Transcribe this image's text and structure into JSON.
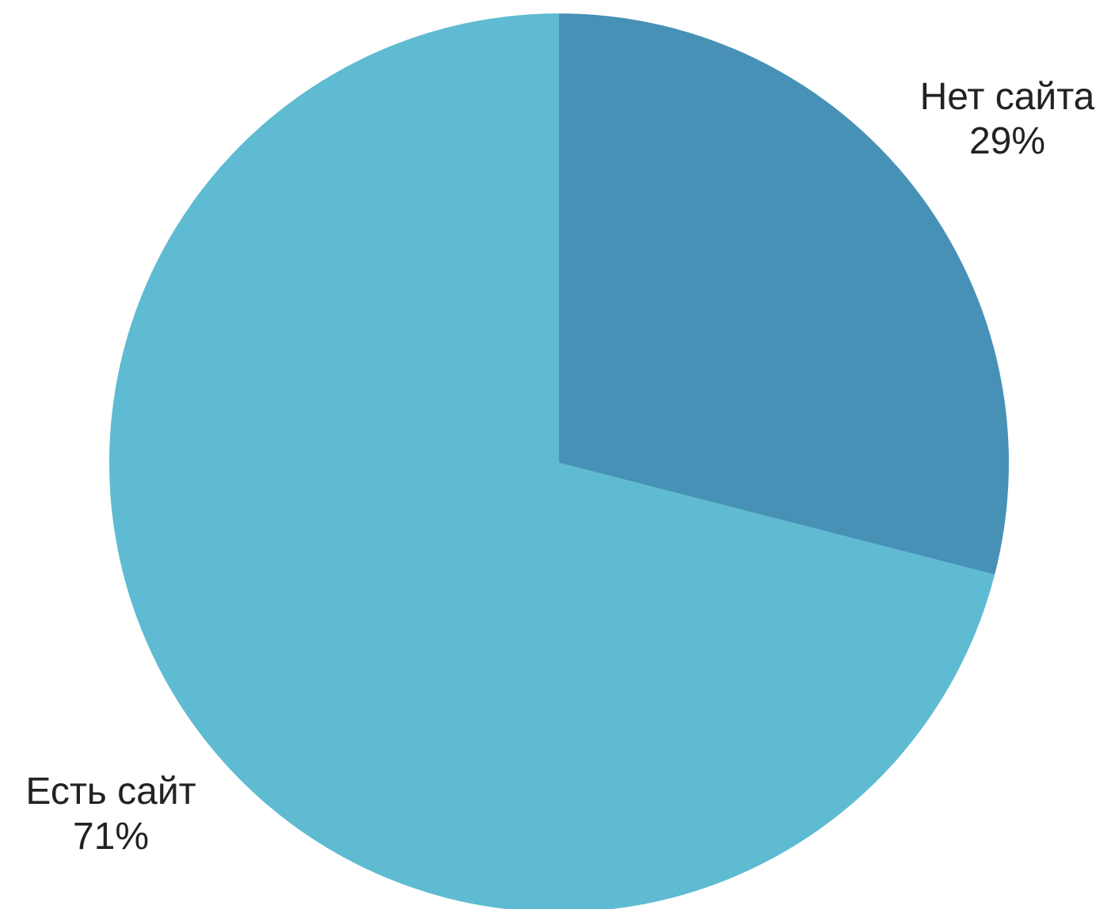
{
  "chart_data": {
    "type": "pie",
    "start": "12 o'clock",
    "direction": "clockwise",
    "slices": [
      {
        "label": "Нет сайта",
        "value": 29,
        "value_label": "29%",
        "color": "#4791b7"
      },
      {
        "label": "Есть сайт",
        "value": 71,
        "value_label": "71%",
        "color": "#5ebbd2"
      }
    ]
  }
}
